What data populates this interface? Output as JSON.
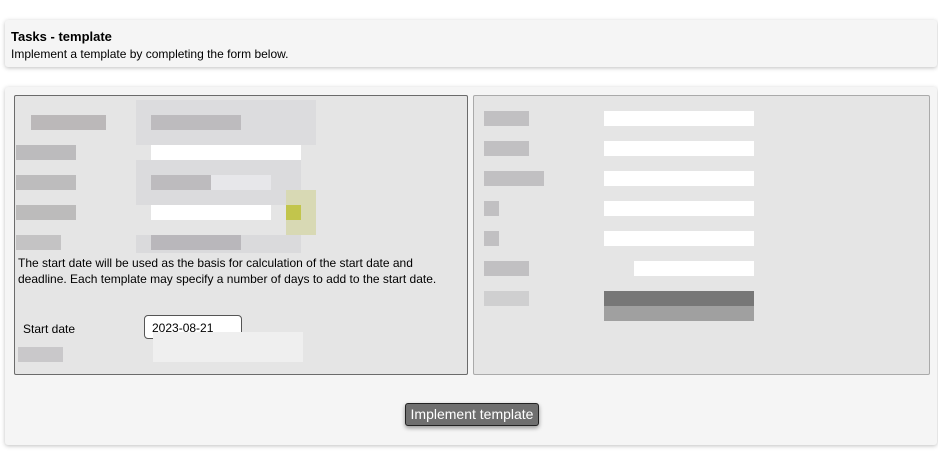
{
  "header": {
    "title": "Tasks - template",
    "subtitle": "Implement a template by completing the form below."
  },
  "form": {
    "help_text": "The start date will be used as the basis for calculation of the start date and deadline. Each template may specify a number of days to add to the start date.",
    "start_date_label": "Start date",
    "start_date_value": "2023-08-21"
  },
  "actions": {
    "implement_label": "Implement template"
  }
}
